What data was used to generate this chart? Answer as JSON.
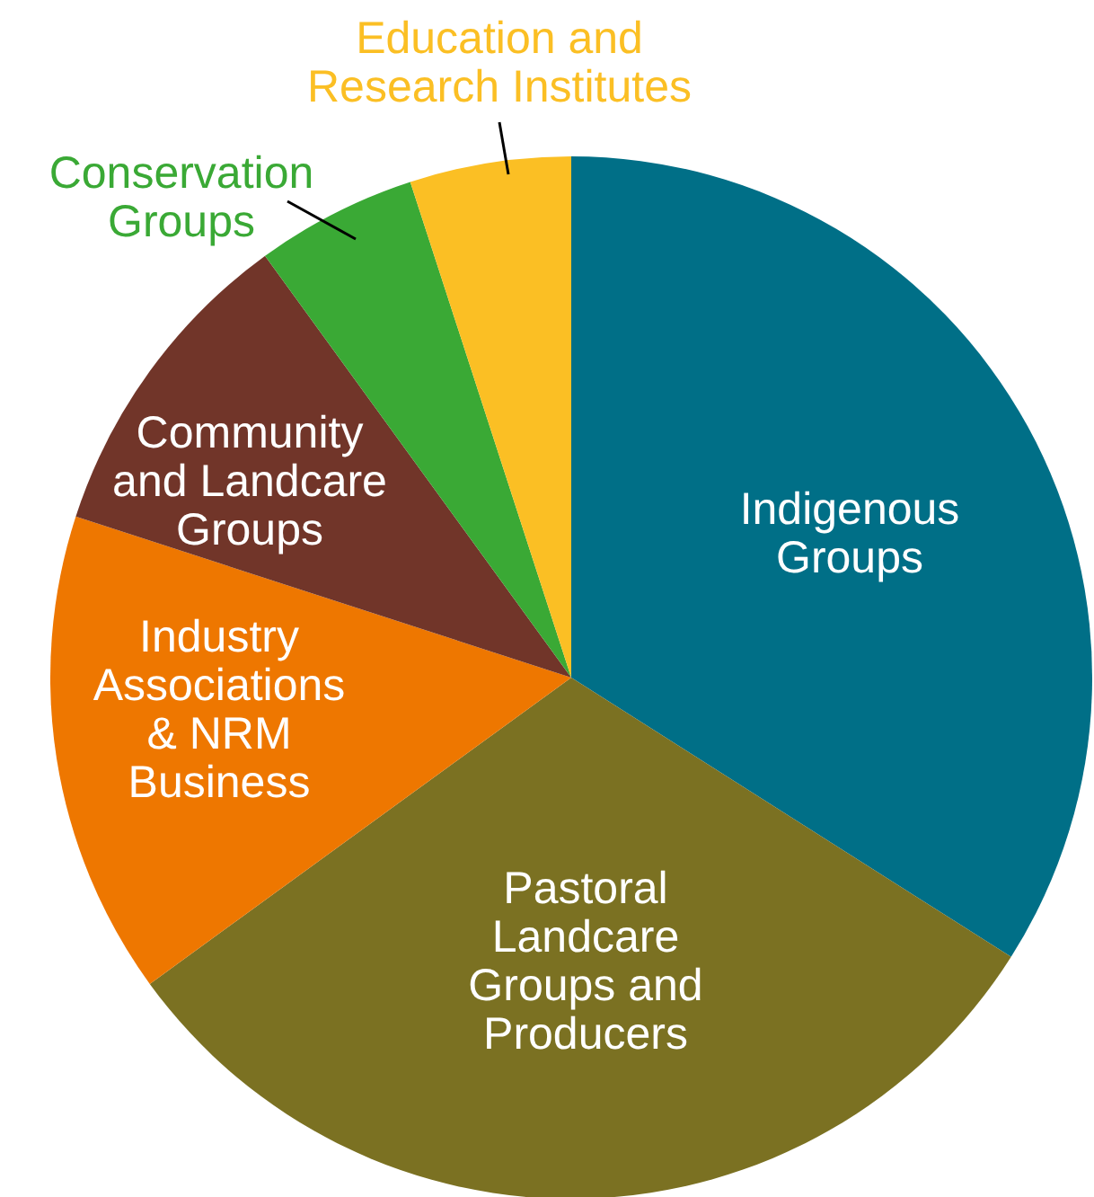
{
  "chart_data": {
    "type": "pie",
    "categories": [
      "Indigenous Groups",
      "Pastoral Landcare Groups and Producers",
      "Industry Associations & NRM Business",
      "Community and Landcare Groups",
      "Conservation Groups",
      "Education and Research Institutes"
    ],
    "values": [
      34,
      31,
      15,
      10,
      5,
      5
    ],
    "colors": [
      "#006f87",
      "#7b7122",
      "#ee7700",
      "#713529",
      "#3aa935",
      "#fbbf24"
    ]
  }
}
